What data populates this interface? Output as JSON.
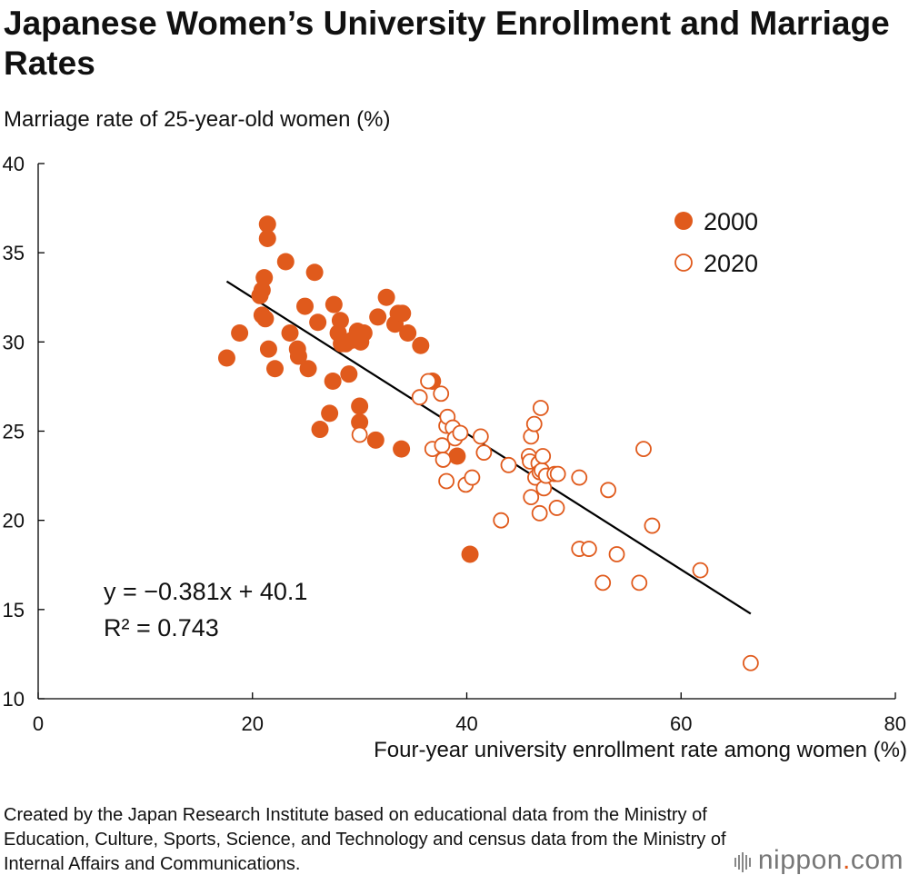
{
  "title": "Japanese Women’s University Enrollment and Marriage Rates",
  "source_text": "Created by the Japan Research Institute based on educational data from the Ministry of Education, Culture, Sports, Science, and Technology and census data from the Ministry of Internal Affairs and Communications.",
  "logo": {
    "prefix": "nippon",
    "dot": ".",
    "suffix": "com"
  },
  "colors": {
    "accent": "#e05a1c",
    "axis": "#000000",
    "text": "#111111"
  },
  "chart_data": {
    "type": "scatter",
    "xlabel": "Four-year university enrollment rate among women (%)",
    "ylabel": "Marriage rate of 25-year-old women (%)",
    "xlim": [
      0,
      80
    ],
    "ylim": [
      10,
      40
    ],
    "xticks": [
      0,
      20,
      40,
      60,
      80
    ],
    "yticks": [
      10,
      15,
      20,
      25,
      30,
      35,
      40
    ],
    "legend_position": "top-right",
    "grid": false,
    "regression": {
      "equation": "y = −0.381x + 40.1",
      "r_squared": "R² = 0.743",
      "slope": -0.381,
      "intercept": 40.1,
      "x_start": 17.6,
      "x_end": 66.5
    },
    "series": [
      {
        "name": "2000",
        "marker": "filled",
        "points": [
          [
            17.6,
            29.1
          ],
          [
            18.8,
            30.5
          ],
          [
            20.7,
            32.6
          ],
          [
            20.9,
            32.9
          ],
          [
            20.9,
            31.5
          ],
          [
            21.1,
            33.6
          ],
          [
            21.2,
            31.3
          ],
          [
            21.4,
            36.6
          ],
          [
            21.4,
            35.8
          ],
          [
            21.5,
            29.6
          ],
          [
            22.1,
            28.5
          ],
          [
            23.1,
            34.5
          ],
          [
            23.5,
            30.5
          ],
          [
            24.2,
            29.6
          ],
          [
            24.3,
            29.2
          ],
          [
            24.9,
            32.0
          ],
          [
            25.2,
            28.5
          ],
          [
            25.8,
            33.9
          ],
          [
            26.1,
            31.1
          ],
          [
            26.3,
            25.1
          ],
          [
            27.2,
            26.0
          ],
          [
            27.5,
            27.8
          ],
          [
            27.6,
            32.1
          ],
          [
            28.0,
            30.5
          ],
          [
            28.2,
            31.2
          ],
          [
            28.3,
            29.9
          ],
          [
            28.7,
            29.9
          ],
          [
            29.0,
            28.2
          ],
          [
            29.3,
            30.1
          ],
          [
            29.8,
            30.6
          ],
          [
            30.0,
            26.4
          ],
          [
            30.0,
            25.5
          ],
          [
            30.1,
            30.0
          ],
          [
            30.4,
            30.5
          ],
          [
            31.5,
            24.5
          ],
          [
            31.7,
            31.4
          ],
          [
            32.5,
            32.5
          ],
          [
            33.3,
            31.0
          ],
          [
            33.6,
            31.6
          ],
          [
            34.0,
            31.6
          ],
          [
            33.9,
            24.0
          ],
          [
            34.5,
            30.5
          ],
          [
            35.7,
            29.8
          ],
          [
            36.8,
            27.8
          ],
          [
            39.1,
            23.6
          ],
          [
            40.3,
            18.1
          ]
        ]
      },
      {
        "name": "2020",
        "marker": "hollow",
        "points": [
          [
            30.0,
            24.8
          ],
          [
            35.6,
            26.9
          ],
          [
            36.4,
            27.8
          ],
          [
            36.8,
            24.0
          ],
          [
            37.6,
            27.1
          ],
          [
            37.7,
            24.2
          ],
          [
            37.8,
            23.4
          ],
          [
            38.1,
            22.2
          ],
          [
            38.1,
            25.3
          ],
          [
            38.2,
            25.8
          ],
          [
            38.7,
            25.2
          ],
          [
            38.9,
            24.6
          ],
          [
            39.4,
            24.9
          ],
          [
            39.9,
            22.0
          ],
          [
            40.5,
            22.4
          ],
          [
            41.3,
            24.7
          ],
          [
            41.6,
            23.8
          ],
          [
            43.2,
            20.0
          ],
          [
            43.9,
            23.1
          ],
          [
            45.8,
            23.6
          ],
          [
            45.9,
            23.3
          ],
          [
            46.0,
            24.7
          ],
          [
            46.0,
            21.3
          ],
          [
            46.3,
            25.4
          ],
          [
            46.4,
            22.4
          ],
          [
            46.7,
            23.2
          ],
          [
            46.8,
            22.7
          ],
          [
            46.8,
            20.4
          ],
          [
            46.9,
            26.3
          ],
          [
            47.0,
            22.8
          ],
          [
            47.1,
            23.6
          ],
          [
            47.2,
            21.8
          ],
          [
            47.4,
            22.5
          ],
          [
            48.2,
            22.6
          ],
          [
            48.4,
            20.7
          ],
          [
            48.5,
            22.6
          ],
          [
            50.5,
            18.4
          ],
          [
            50.5,
            22.4
          ],
          [
            51.4,
            18.4
          ],
          [
            52.7,
            16.5
          ],
          [
            53.2,
            21.7
          ],
          [
            54.0,
            18.1
          ],
          [
            56.1,
            16.5
          ],
          [
            56.5,
            24.0
          ],
          [
            57.3,
            19.7
          ],
          [
            61.8,
            17.2
          ],
          [
            66.5,
            12.0
          ]
        ]
      }
    ]
  }
}
